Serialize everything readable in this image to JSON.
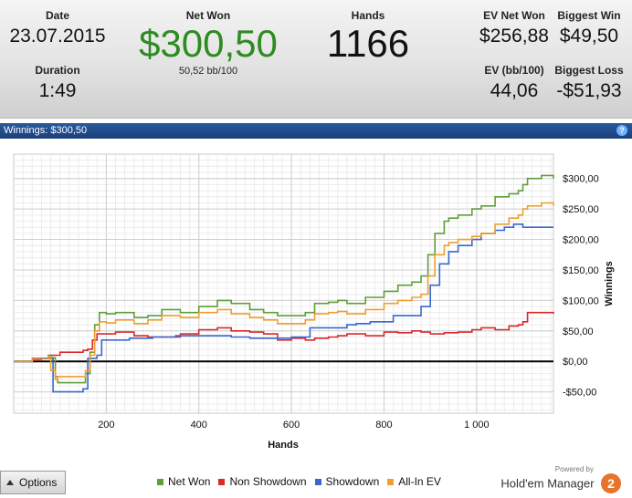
{
  "stats": {
    "date_label": "Date",
    "date_value": "23.07.2015",
    "duration_label": "Duration",
    "duration_value": "1:49",
    "net_won_label": "Net Won",
    "net_won_value": "$300,50",
    "net_won_sub": "50,52 bb/100",
    "hands_label": "Hands",
    "hands_value": "1166",
    "ev_net_won_label": "EV Net Won",
    "ev_net_won_value": "$256,88",
    "ev_bb_label": "EV (bb/100)",
    "ev_bb_value": "44,06",
    "biggest_win_label": "Biggest Win",
    "biggest_win_value": "$49,50",
    "biggest_loss_label": "Biggest Loss",
    "biggest_loss_value": "-$51,93"
  },
  "panel": {
    "title": "Winnings: $300,50",
    "help_icon": "?"
  },
  "chart_data": {
    "type": "line",
    "xlabel": "Hands",
    "ylabel": "Winnings",
    "xlim": [
      0,
      1166
    ],
    "ylim": [
      -85,
      340
    ],
    "x_ticks": [
      200,
      400,
      600,
      800,
      1000
    ],
    "x_tick_labels": [
      "200",
      "400",
      "600",
      "800",
      "1 000"
    ],
    "y_ticks": [
      300,
      250,
      200,
      150,
      100,
      50,
      0,
      -50
    ],
    "y_tick_labels": [
      "$300,00",
      "$250,00",
      "$200,00",
      "$150,00",
      "$100,00",
      "$50,00",
      "$0,00",
      "-$50,00"
    ],
    "grid": true,
    "zero_line": true,
    "series": [
      {
        "name": "Net Won",
        "color": "#5f9e3a",
        "x": [
          0,
          40,
          75,
          80,
          90,
          95,
          155,
          165,
          175,
          185,
          200,
          220,
          260,
          290,
          320,
          360,
          400,
          440,
          470,
          510,
          540,
          570,
          600,
          630,
          650,
          680,
          700,
          720,
          760,
          800,
          830,
          860,
          880,
          895,
          910,
          930,
          940,
          960,
          990,
          1010,
          1040,
          1070,
          1090,
          1100,
          1110,
          1140,
          1166
        ],
        "y": [
          0,
          5,
          10,
          6,
          -25,
          -35,
          -20,
          15,
          60,
          80,
          78,
          80,
          72,
          75,
          85,
          80,
          90,
          100,
          95,
          85,
          80,
          75,
          75,
          80,
          95,
          97,
          100,
          95,
          105,
          115,
          125,
          130,
          140,
          175,
          210,
          230,
          235,
          240,
          250,
          255,
          270,
          275,
          280,
          290,
          300,
          305,
          300
        ]
      },
      {
        "name": "Non Showdown",
        "color": "#d8292b",
        "x": [
          0,
          40,
          60,
          80,
          100,
          150,
          160,
          170,
          180,
          200,
          220,
          260,
          290,
          320,
          360,
          400,
          440,
          470,
          510,
          540,
          570,
          600,
          630,
          650,
          680,
          700,
          720,
          760,
          800,
          830,
          860,
          880,
          900,
          930,
          960,
          990,
          1010,
          1040,
          1070,
          1090,
          1100,
          1110,
          1140,
          1166
        ],
        "y": [
          0,
          2,
          5,
          10,
          15,
          18,
          20,
          35,
          45,
          45,
          48,
          42,
          40,
          40,
          45,
          52,
          55,
          50,
          48,
          45,
          35,
          38,
          35,
          38,
          40,
          42,
          45,
          42,
          48,
          47,
          50,
          48,
          45,
          47,
          48,
          52,
          55,
          52,
          58,
          60,
          65,
          80,
          80,
          78
        ]
      },
      {
        "name": "Showdown",
        "color": "#3a66d1",
        "x": [
          0,
          40,
          80,
          85,
          150,
          160,
          180,
          190,
          250,
          300,
          350,
          400,
          470,
          510,
          560,
          600,
          640,
          700,
          720,
          740,
          770,
          820,
          880,
          900,
          920,
          940,
          960,
          990,
          1010,
          1040,
          1060,
          1080,
          1100,
          1166
        ],
        "y": [
          0,
          5,
          5,
          -50,
          -45,
          5,
          10,
          35,
          38,
          40,
          42,
          42,
          40,
          38,
          38,
          40,
          55,
          55,
          60,
          62,
          65,
          75,
          90,
          125,
          160,
          180,
          190,
          200,
          210,
          215,
          220,
          225,
          220,
          220
        ]
      },
      {
        "name": "All-In EV",
        "color": "#ef9e2f",
        "x": [
          0,
          40,
          75,
          80,
          90,
          95,
          155,
          165,
          175,
          185,
          200,
          220,
          260,
          290,
          320,
          360,
          400,
          440,
          470,
          510,
          540,
          570,
          600,
          630,
          650,
          680,
          700,
          720,
          760,
          800,
          830,
          860,
          880,
          895,
          910,
          930,
          940,
          960,
          990,
          1010,
          1040,
          1070,
          1090,
          1100,
          1110,
          1140,
          1166
        ],
        "y": [
          0,
          4,
          8,
          -15,
          -30,
          -25,
          -15,
          10,
          50,
          65,
          63,
          68,
          62,
          68,
          75,
          72,
          80,
          85,
          78,
          72,
          68,
          62,
          62,
          68,
          78,
          80,
          82,
          78,
          85,
          95,
          100,
          105,
          110,
          140,
          175,
          190,
          195,
          200,
          205,
          210,
          225,
          235,
          240,
          250,
          255,
          260,
          255
        ]
      }
    ]
  },
  "footer": {
    "options_label": "Options",
    "legend": [
      {
        "label": "Net Won",
        "color": "#5f9e3a"
      },
      {
        "label": "Non Showdown",
        "color": "#d8292b"
      },
      {
        "label": "Showdown",
        "color": "#3a66d1"
      },
      {
        "label": "All-In EV",
        "color": "#ef9e2f"
      }
    ],
    "powered_by": "Powered by",
    "brand_name": "Hold'em Manager",
    "brand_logo": "2"
  }
}
